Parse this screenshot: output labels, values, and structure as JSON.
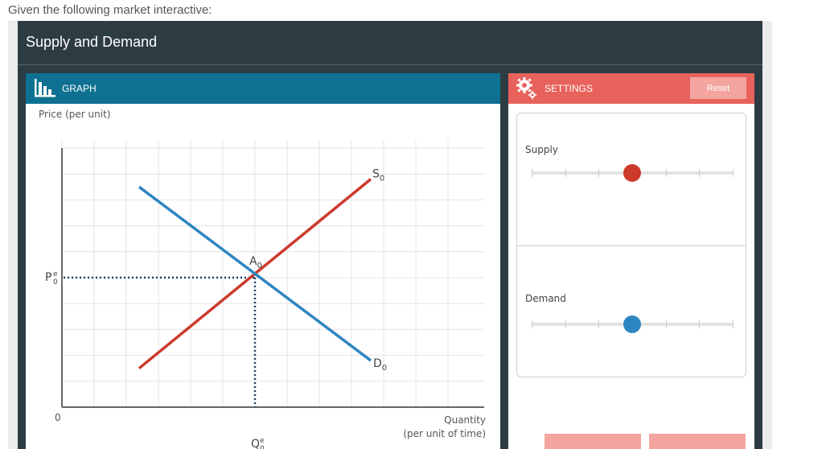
{
  "intro_text": "Given the following market interactive:",
  "widget": {
    "title": "Supply and Demand"
  },
  "graph_panel": {
    "label": "GRAPH",
    "icon": "bar-chart-icon"
  },
  "settings_panel": {
    "label": "SETTINGS",
    "icon": "gear-icon",
    "reset_label": "Reset",
    "sliders": [
      {
        "name": "supply",
        "label": "Supply",
        "value_fraction": 0.5,
        "color": "#cc3a2c"
      },
      {
        "name": "demand",
        "label": "Demand",
        "value_fraction": 0.5,
        "color": "#2e86c1"
      }
    ],
    "bottom_buttons": [
      "",
      ""
    ]
  },
  "colors": {
    "header_dark": "#2d3c43",
    "graph_header": "#0e7191",
    "settings_header": "#e8625c",
    "supply_line": "#cc3a2c",
    "demand_line": "#2e86c1"
  },
  "chart_data": {
    "type": "line",
    "ylabel": "Price (per unit)",
    "xlabel_line1": "Quantity",
    "xlabel_line2": "(per unit of time)",
    "origin_label": "0",
    "xlim": [
      0,
      10
    ],
    "ylim": [
      0,
      10
    ],
    "grid": true,
    "series": [
      {
        "name": "S0",
        "label_main": "S",
        "label_sub": "0",
        "color": "#cc3a2c",
        "points": [
          [
            2,
            1.5
          ],
          [
            8,
            8.8
          ]
        ]
      },
      {
        "name": "D0",
        "label_main": "D",
        "label_sub": "0",
        "color": "#2e86c1",
        "points": [
          [
            2,
            8.5
          ],
          [
            8,
            1.8
          ]
        ]
      }
    ],
    "equilibrium": {
      "x": 5,
      "y": 5,
      "point_label_main": "A",
      "point_label_sub": "0",
      "price_label_main": "P",
      "price_label_sup": "e",
      "price_label_sub": "0",
      "quantity_label_main": "Q",
      "quantity_label_sup": "e",
      "quantity_label_sub": "0"
    }
  }
}
